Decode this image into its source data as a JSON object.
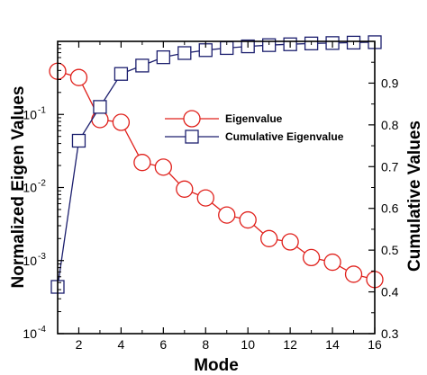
{
  "chart_data": {
    "type": "line",
    "title": "",
    "xlabel": "Mode",
    "ylabel_left": "Normalized Eigen Values",
    "ylabel_right": "Cumulative Values",
    "xlim": [
      1,
      16
    ],
    "ylim_left": [
      0.0001,
      1
    ],
    "yscale_left": "log",
    "ylim_right": [
      0.3,
      1.0
    ],
    "grid": false,
    "legend_position": "center-right",
    "x_ticks": [
      2,
      4,
      6,
      8,
      10,
      12,
      14,
      16
    ],
    "x_tick_labels": [
      "2",
      "4",
      "6",
      "8",
      "10",
      "12",
      "14",
      "16"
    ],
    "y_left_ticks": [
      {
        "base": "10",
        "exp": "-1",
        "value": 0.1
      },
      {
        "base": "10",
        "exp": "-2",
        "value": 0.01
      },
      {
        "base": "10",
        "exp": "-3",
        "value": 0.001
      },
      {
        "base": "10",
        "exp": "-4",
        "value": 0.0001
      }
    ],
    "y_right_ticks": [
      0.9,
      0.8,
      0.7,
      0.6,
      0.5,
      0.4,
      0.3
    ],
    "y_right_tick_labels": [
      "0.9",
      "0.8",
      "0.7",
      "0.6",
      "0.5",
      "0.4",
      "0.3"
    ],
    "x": [
      1,
      2,
      3,
      4,
      5,
      6,
      7,
      8,
      9,
      10,
      11,
      12,
      13,
      14,
      15,
      16
    ],
    "series": [
      {
        "name": "Eigenvalue",
        "axis": "left",
        "marker": "circle",
        "color": "#e0201b",
        "values": [
          0.39,
          0.32,
          0.085,
          0.078,
          0.022,
          0.019,
          0.0095,
          0.0072,
          0.0042,
          0.0036,
          0.002,
          0.0018,
          0.0011,
          0.00095,
          0.00065,
          0.00055
        ]
      },
      {
        "name": "Cumulative Eigenvalue",
        "axis": "right",
        "marker": "square",
        "color": "#1c1f6e",
        "values": [
          0.412,
          0.762,
          0.843,
          0.922,
          0.942,
          0.962,
          0.972,
          0.979,
          0.984,
          0.988,
          0.991,
          0.993,
          0.995,
          0.996,
          0.997,
          0.998
        ]
      }
    ]
  }
}
